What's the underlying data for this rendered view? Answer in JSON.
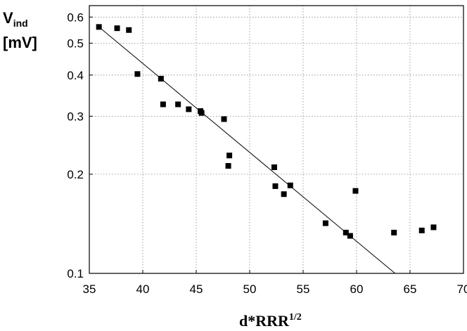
{
  "chart_data": {
    "type": "scatter",
    "y_scale": "log",
    "grid": true,
    "xlim": [
      35,
      70
    ],
    "ylim": [
      0.1,
      0.65
    ],
    "x_ticks": [
      35,
      40,
      45,
      50,
      55,
      60,
      65,
      70
    ],
    "y_ticks": [
      0.1,
      0.2,
      0.3,
      0.4,
      0.5,
      0.6
    ],
    "ylabel_main": "V",
    "ylabel_sub": "ind",
    "ylabel_unit": "[mV]",
    "xlabel_main": "d*RRR",
    "xlabel_sup": "1/2",
    "points": [
      {
        "x": 35.9,
        "y": 0.56
      },
      {
        "x": 37.6,
        "y": 0.555
      },
      {
        "x": 38.7,
        "y": 0.548
      },
      {
        "x": 39.5,
        "y": 0.403
      },
      {
        "x": 41.7,
        "y": 0.39
      },
      {
        "x": 41.9,
        "y": 0.326
      },
      {
        "x": 43.3,
        "y": 0.326
      },
      {
        "x": 44.3,
        "y": 0.315
      },
      {
        "x": 45.4,
        "y": 0.311
      },
      {
        "x": 45.5,
        "y": 0.307
      },
      {
        "x": 47.6,
        "y": 0.294
      },
      {
        "x": 48.0,
        "y": 0.212
      },
      {
        "x": 48.1,
        "y": 0.228
      },
      {
        "x": 52.3,
        "y": 0.21
      },
      {
        "x": 52.4,
        "y": 0.184
      },
      {
        "x": 53.2,
        "y": 0.174
      },
      {
        "x": 53.8,
        "y": 0.185
      },
      {
        "x": 57.1,
        "y": 0.142
      },
      {
        "x": 59.0,
        "y": 0.133
      },
      {
        "x": 59.4,
        "y": 0.13
      },
      {
        "x": 59.9,
        "y": 0.178
      },
      {
        "x": 63.5,
        "y": 0.133
      },
      {
        "x": 66.1,
        "y": 0.135
      },
      {
        "x": 67.2,
        "y": 0.138
      }
    ],
    "fit_line": [
      {
        "x": 35.9,
        "y": 0.56
      },
      {
        "x": 63.6,
        "y": 0.1
      }
    ]
  }
}
